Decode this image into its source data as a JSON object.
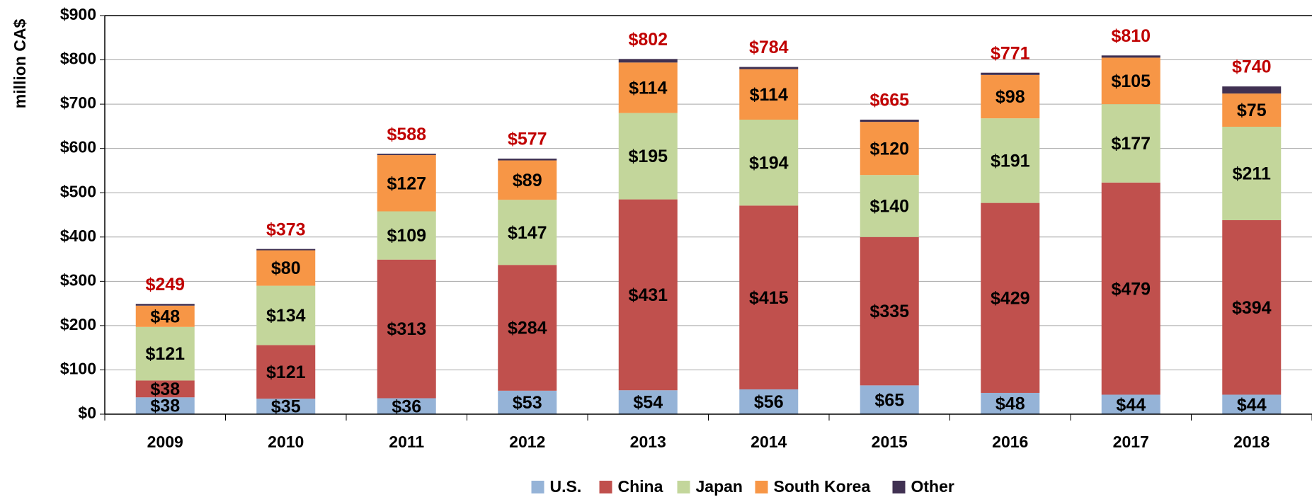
{
  "chart_data": {
    "type": "bar",
    "stacked": true,
    "y_label": "million CA$",
    "categories": [
      "2009",
      "2010",
      "2011",
      "2012",
      "2013",
      "2014",
      "2015",
      "2016",
      "2017",
      "2018"
    ],
    "series": [
      {
        "name": "U.S.",
        "color": "#95b3d7",
        "values": [
          38,
          35,
          36,
          53,
          54,
          56,
          65,
          48,
          44,
          44
        ],
        "value_labels": [
          "$38",
          "$35",
          "$36",
          "$53",
          "$54",
          "$56",
          "$65",
          "$48",
          "$44",
          "$44"
        ]
      },
      {
        "name": "China",
        "color": "#c0504d",
        "values": [
          38,
          121,
          313,
          284,
          431,
          415,
          335,
          429,
          479,
          394
        ],
        "value_labels": [
          "$38",
          "$121",
          "$313",
          "$284",
          "$431",
          "$415",
          "$335",
          "$429",
          "$479",
          "$394"
        ]
      },
      {
        "name": "Japan",
        "color": "#c3d69b",
        "values": [
          121,
          134,
          109,
          147,
          195,
          194,
          140,
          191,
          177,
          211
        ],
        "value_labels": [
          "$121",
          "$134",
          "$109",
          "$147",
          "$195",
          "$194",
          "$140",
          "$191",
          "$177",
          "$211"
        ]
      },
      {
        "name": "South Korea",
        "color": "#f79646",
        "values": [
          48,
          80,
          127,
          89,
          114,
          114,
          120,
          98,
          105,
          75
        ],
        "value_labels": [
          "$48",
          "$80",
          "$127",
          "$89",
          "$114",
          "$114",
          "$120",
          "$98",
          "$105",
          "$75"
        ]
      },
      {
        "name": "Other",
        "color": "#403152",
        "values": [
          4,
          3,
          3,
          4,
          8,
          5,
          5,
          5,
          5,
          16
        ]
      }
    ],
    "totals": [
      249,
      373,
      588,
      577,
      802,
      784,
      665,
      771,
      810,
      740
    ],
    "total_labels": [
      "$249",
      "$373",
      "$588",
      "$577",
      "$802",
      "$784",
      "$665",
      "$771",
      "$810",
      "$740"
    ],
    "total_color": "#c00000",
    "ylim": [
      0,
      900
    ],
    "yticks": [
      {
        "value": 0,
        "label": "$0"
      },
      {
        "value": 100,
        "label": "$100"
      },
      {
        "value": 200,
        "label": "$200"
      },
      {
        "value": 300,
        "label": "$300"
      },
      {
        "value": 400,
        "label": "$400"
      },
      {
        "value": 500,
        "label": "$500"
      },
      {
        "value": 600,
        "label": "$600"
      },
      {
        "value": 700,
        "label": "$700"
      },
      {
        "value": 800,
        "label": "$800"
      },
      {
        "value": 900,
        "label": "$900"
      }
    ],
    "grid": true,
    "legend": "bottom"
  }
}
